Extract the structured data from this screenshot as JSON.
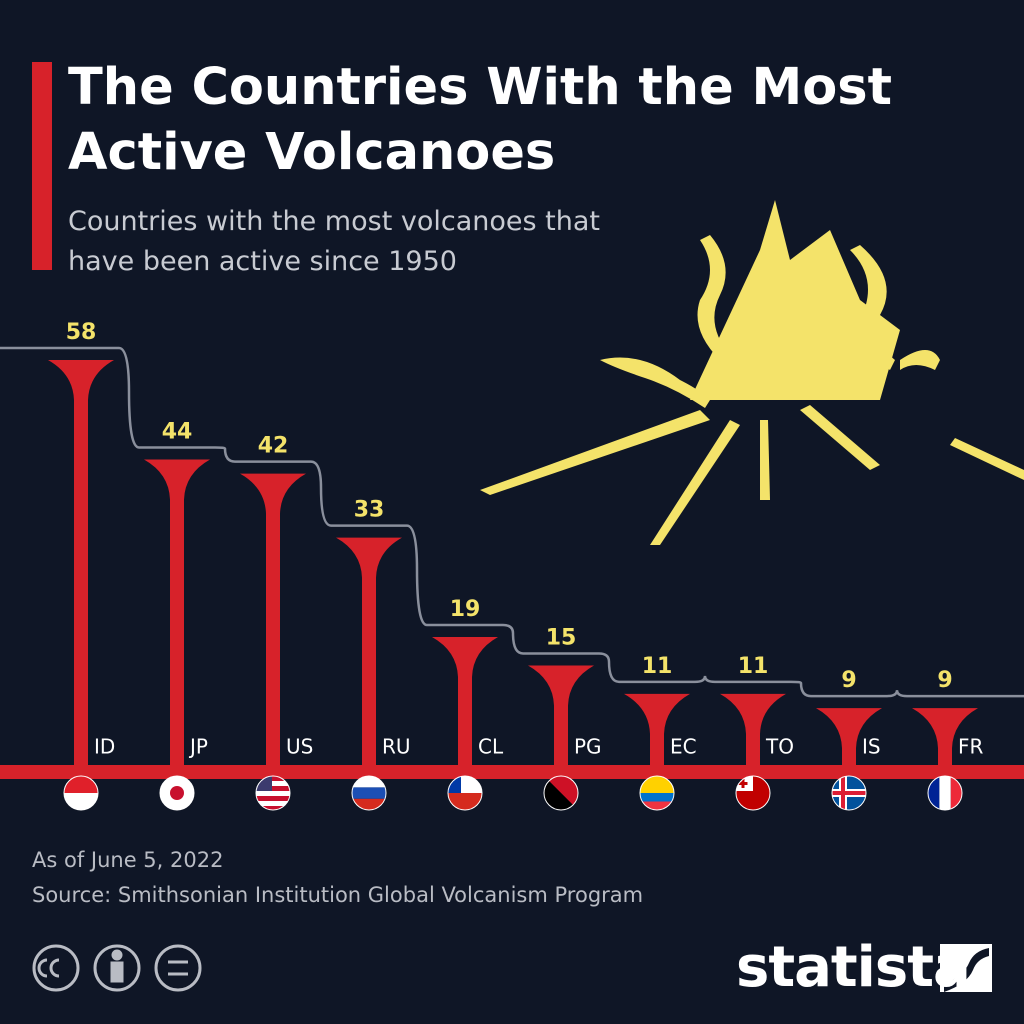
{
  "chart_data": {
    "type": "lollipop",
    "title": "The Countries With the Most Active Volcanoes",
    "subtitle": "Countries with the most volcanoes that have been active since 1950",
    "categories": [
      "ID",
      "JP",
      "US",
      "RU",
      "CL",
      "PG",
      "EC",
      "TO",
      "IS",
      "FR"
    ],
    "values": [
      58,
      44,
      42,
      33,
      19,
      15,
      11,
      11,
      9,
      9
    ],
    "color": "#d7222a",
    "label_color": "#f4e36a",
    "note": "As of June 5, 2022",
    "source": "Source: Smithsonian Institution Global Volcanism Program",
    "brand": "statista"
  }
}
